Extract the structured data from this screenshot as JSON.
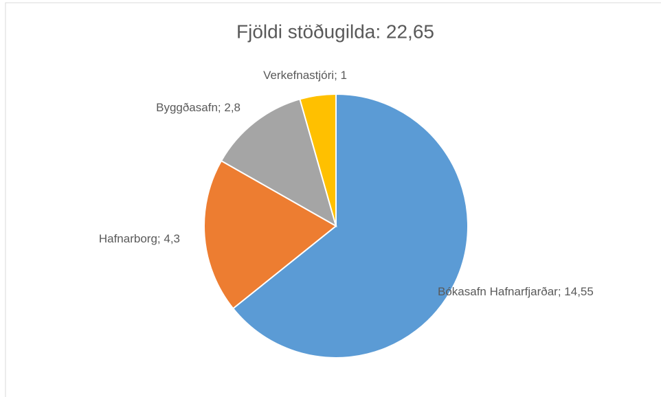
{
  "chart_data": {
    "type": "pie",
    "title": "Fjöldi stöðugilda: 22,65",
    "categories": [
      "Bókasafn Hafnarfjarðar",
      "Hafnarborg",
      "Byggðasafn",
      "Verkefnastjóri"
    ],
    "values": [
      14.55,
      4.3,
      2.8,
      1
    ],
    "value_labels": [
      "14,55",
      "4,3",
      "2,8",
      "1"
    ],
    "separator": "; ",
    "colors": [
      "#5b9bd5",
      "#ed7d31",
      "#a5a5a5",
      "#ffc000"
    ]
  }
}
